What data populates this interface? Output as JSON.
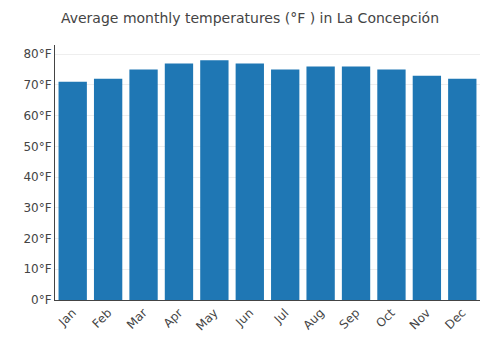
{
  "chart_data": {
    "type": "bar",
    "title": "Average monthly temperatures (°F ) in La Concepción",
    "categories": [
      "Jan",
      "Feb",
      "Mar",
      "Apr",
      "May",
      "Jun",
      "Jul",
      "Aug",
      "Sep",
      "Oct",
      "Nov",
      "Dec"
    ],
    "values": [
      71,
      72,
      75,
      77,
      78,
      77,
      75,
      76,
      76,
      75,
      73,
      72
    ],
    "ylim": [
      0,
      83
    ],
    "yticks": [
      {
        "value": 0,
        "label": "0°F"
      },
      {
        "value": 10,
        "label": "10°F"
      },
      {
        "value": 20,
        "label": "20°F"
      },
      {
        "value": 30,
        "label": "30°F"
      },
      {
        "value": 40,
        "label": "40°F"
      },
      {
        "value": 50,
        "label": "50°F"
      },
      {
        "value": 60,
        "label": "60°F"
      },
      {
        "value": 70,
        "label": "70°F"
      },
      {
        "value": 80,
        "label": "80°F"
      }
    ],
    "grid": true
  }
}
